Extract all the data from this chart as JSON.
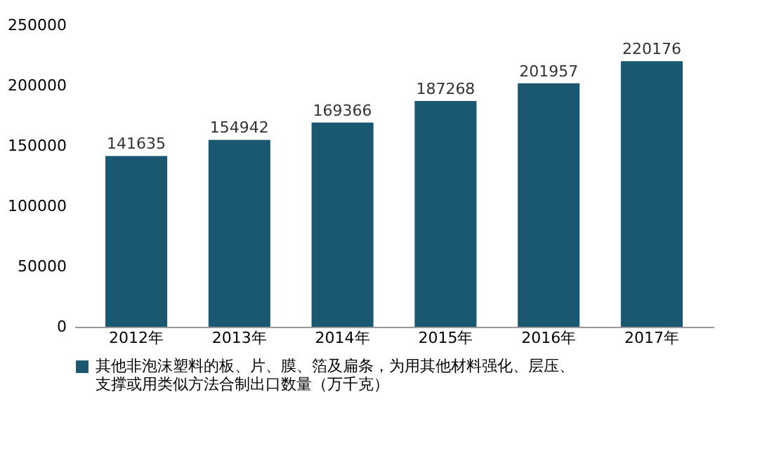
{
  "chart_data": {
    "type": "bar",
    "categories": [
      "2012年",
      "2013年",
      "2014年",
      "2015年",
      "2016年",
      "2017年"
    ],
    "series": [
      {
        "name": "其他非泡沫塑料的板、片、膜、箔及扁条，为用其他材料强化、层压、支撑或用类似方法合制出口数量（万千克）",
        "color": "#1a5770",
        "values": [
          141635,
          154942,
          169366,
          187268,
          201957,
          220176
        ]
      }
    ],
    "ylim": [
      0,
      250000
    ],
    "yticks": [
      0,
      50000,
      100000,
      150000,
      200000,
      250000
    ],
    "grid": false,
    "legend": "bottom",
    "data_labels": true
  }
}
